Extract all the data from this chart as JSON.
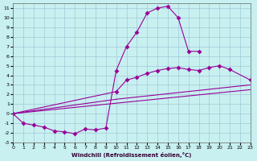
{
  "xlabel": "Windchill (Refroidissement éolien,°C)",
  "bg_color": "#c8f0f0",
  "line_color": "#990099",
  "grid_color": "#a0c8d8",
  "xlim": [
    0,
    23
  ],
  "ylim": [
    -3,
    11.5
  ],
  "l1x": [
    0,
    1,
    2,
    3,
    4,
    5,
    6,
    7,
    8,
    9,
    10,
    11,
    12,
    13,
    14,
    15,
    16,
    17,
    18
  ],
  "l1y": [
    0,
    -1,
    -1.2,
    -1.4,
    -1.8,
    -1.9,
    -2.1,
    -1.6,
    -1.7,
    -1.5,
    4.5,
    7.0,
    8.5,
    10.5,
    11.0,
    11.2,
    10.0,
    6.5,
    6.5
  ],
  "l2x": [
    0,
    23
  ],
  "l2y": [
    0,
    2.5
  ],
  "l3x": [
    0,
    10,
    23
  ],
  "l3y": [
    0,
    1.5,
    3.0
  ],
  "l4x": [
    0,
    10,
    11,
    12,
    13,
    14,
    15,
    16,
    17,
    18,
    19,
    20,
    21,
    23
  ],
  "l4y": [
    0,
    2.3,
    3.5,
    3.8,
    4.2,
    4.5,
    4.7,
    4.8,
    4.6,
    4.5,
    4.8,
    5.0,
    4.6,
    3.5
  ],
  "markersize": 3
}
